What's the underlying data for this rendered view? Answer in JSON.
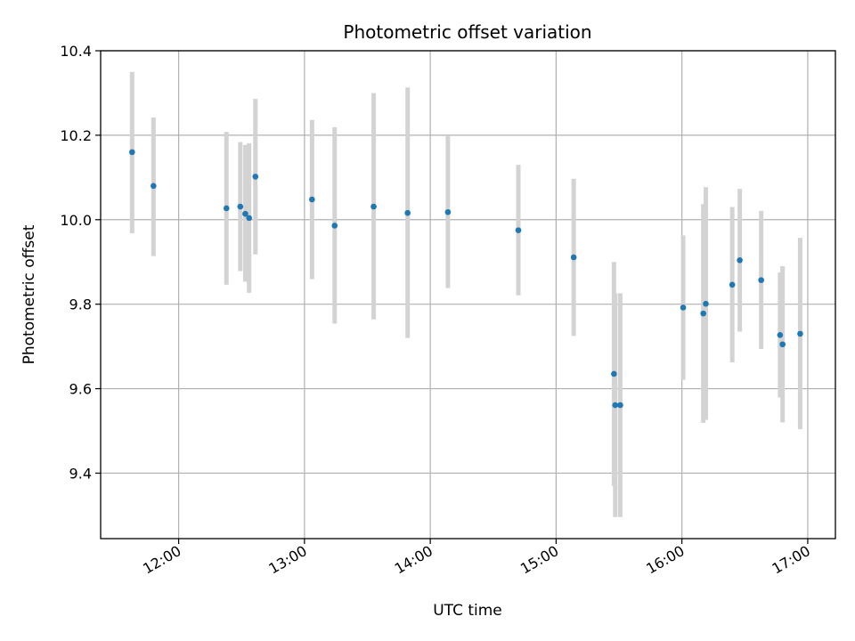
{
  "chart_data": {
    "type": "scatter",
    "title": "Photometric offset variation",
    "xlabel": "UTC time",
    "ylabel": "Photometric offset",
    "xlim": [
      11.38,
      17.22
    ],
    "ylim": [
      9.245,
      10.4
    ],
    "x_ticks": [
      {
        "value": 12,
        "label": "12:00"
      },
      {
        "value": 13,
        "label": "13:00"
      },
      {
        "value": 14,
        "label": "14:00"
      },
      {
        "value": 15,
        "label": "15:00"
      },
      {
        "value": 16,
        "label": "16:00"
      },
      {
        "value": 17,
        "label": "17:00"
      }
    ],
    "y_ticks": [
      {
        "value": 9.4,
        "label": "9.4"
      },
      {
        "value": 9.6,
        "label": "9.6"
      },
      {
        "value": 9.8,
        "label": "9.8"
      },
      {
        "value": 10.0,
        "label": "10.0"
      },
      {
        "value": 10.2,
        "label": "10.2"
      },
      {
        "value": 10.4,
        "label": "10.4"
      }
    ],
    "grid": true,
    "marker_color": "#1f77b4",
    "errorbar_color": "#d3d3d3",
    "series": [
      {
        "name": "Photometric offset",
        "points": [
          {
            "x": 11.63,
            "y": 10.16,
            "lo": 9.968,
            "hi": 10.35
          },
          {
            "x": 11.8,
            "y": 10.08,
            "lo": 9.914,
            "hi": 10.242
          },
          {
            "x": 12.38,
            "y": 10.027,
            "lo": 9.846,
            "hi": 10.208
          },
          {
            "x": 12.49,
            "y": 10.031,
            "lo": 9.878,
            "hi": 10.184
          },
          {
            "x": 12.53,
            "y": 10.014,
            "lo": 9.853,
            "hi": 10.177
          },
          {
            "x": 12.56,
            "y": 10.004,
            "lo": 9.827,
            "hi": 10.181
          },
          {
            "x": 12.61,
            "y": 10.102,
            "lo": 9.918,
            "hi": 10.286
          },
          {
            "x": 13.06,
            "y": 10.048,
            "lo": 9.859,
            "hi": 10.236
          },
          {
            "x": 13.24,
            "y": 9.986,
            "lo": 9.754,
            "hi": 10.219
          },
          {
            "x": 13.55,
            "y": 10.031,
            "lo": 9.764,
            "hi": 10.3
          },
          {
            "x": 13.82,
            "y": 10.016,
            "lo": 9.72,
            "hi": 10.313
          },
          {
            "x": 14.14,
            "y": 10.018,
            "lo": 9.838,
            "hi": 10.198
          },
          {
            "x": 14.7,
            "y": 9.975,
            "lo": 9.821,
            "hi": 10.13
          },
          {
            "x": 15.14,
            "y": 9.911,
            "lo": 9.725,
            "hi": 10.097
          },
          {
            "x": 15.46,
            "y": 9.635,
            "lo": 9.37,
            "hi": 9.9
          },
          {
            "x": 15.47,
            "y": 9.561,
            "lo": 9.296,
            "hi": 9.826
          },
          {
            "x": 15.51,
            "y": 9.561,
            "lo": 9.296,
            "hi": 9.826
          },
          {
            "x": 16.01,
            "y": 9.792,
            "lo": 9.621,
            "hi": 9.963
          },
          {
            "x": 16.17,
            "y": 9.778,
            "lo": 9.519,
            "hi": 10.037
          },
          {
            "x": 16.19,
            "y": 9.801,
            "lo": 9.526,
            "hi": 10.077
          },
          {
            "x": 16.4,
            "y": 9.846,
            "lo": 9.662,
            "hi": 10.03
          },
          {
            "x": 16.46,
            "y": 9.904,
            "lo": 9.735,
            "hi": 10.073
          },
          {
            "x": 16.63,
            "y": 9.857,
            "lo": 9.694,
            "hi": 10.021
          },
          {
            "x": 16.78,
            "y": 9.727,
            "lo": 9.579,
            "hi": 9.875
          },
          {
            "x": 16.8,
            "y": 9.705,
            "lo": 9.52,
            "hi": 9.89
          },
          {
            "x": 16.94,
            "y": 9.73,
            "lo": 9.504,
            "hi": 9.957
          }
        ]
      }
    ]
  }
}
